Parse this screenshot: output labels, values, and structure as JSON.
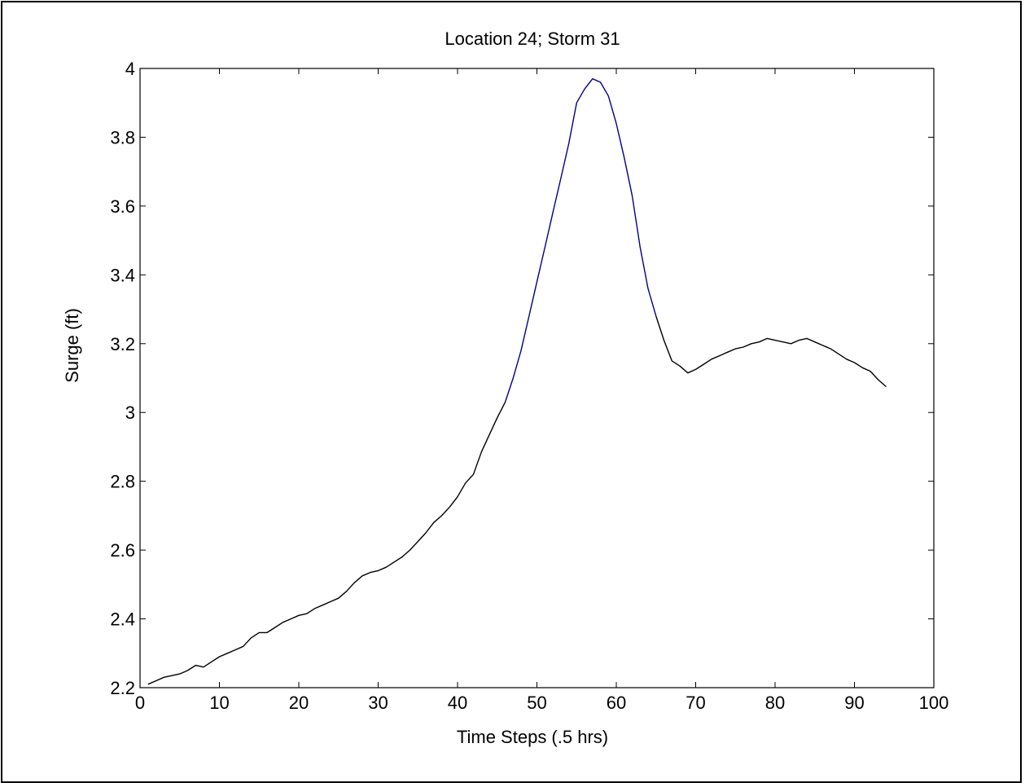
{
  "chart_data": {
    "type": "line",
    "title": "Location 24; Storm 31",
    "xlabel": "Time Steps (.5 hrs)",
    "ylabel": "Surge (ft)",
    "xlim": [
      0,
      100
    ],
    "ylim": [
      2.2,
      4.0
    ],
    "xticks": [
      0,
      10,
      20,
      30,
      40,
      50,
      60,
      70,
      80,
      90,
      100
    ],
    "xtick_labels": [
      "0",
      "10",
      "20",
      "30",
      "40",
      "50",
      "60",
      "70",
      "80",
      "90",
      "100"
    ],
    "yticks": [
      2.2,
      2.4,
      2.6,
      2.8,
      3.0,
      3.2,
      3.4,
      3.6,
      3.8,
      4.0
    ],
    "ytick_labels": [
      "2.2",
      "2.4",
      "2.6",
      "2.8",
      "3",
      "3.2",
      "3.4",
      "3.6",
      "3.8",
      "4"
    ],
    "grid": false,
    "series": [
      {
        "segments": [
          {
            "color": "#000000",
            "x": [
              1,
              2,
              3,
              4,
              5,
              6,
              7,
              8,
              9,
              10,
              11,
              12,
              13,
              14,
              15,
              16,
              17,
              18,
              19,
              20,
              21,
              22,
              23,
              24,
              25,
              26,
              27,
              28,
              29,
              30,
              31,
              32,
              33,
              34,
              35,
              36,
              37,
              38,
              39,
              40,
              41,
              42,
              43,
              44,
              45,
              46
            ],
            "y": [
              2.21,
              2.22,
              2.23,
              2.235,
              2.24,
              2.25,
              2.265,
              2.26,
              2.275,
              2.29,
              2.3,
              2.31,
              2.32,
              2.345,
              2.36,
              2.36,
              2.375,
              2.39,
              2.4,
              2.41,
              2.415,
              2.43,
              2.44,
              2.45,
              2.46,
              2.48,
              2.505,
              2.525,
              2.535,
              2.54,
              2.55,
              2.565,
              2.58,
              2.6,
              2.625,
              2.65,
              2.68,
              2.7,
              2.725,
              2.755,
              2.795,
              2.82,
              2.885,
              2.935,
              2.985,
              3.03
            ]
          },
          {
            "color": "#00008b",
            "x": [
              46,
              47,
              48,
              49,
              50,
              51,
              52,
              53,
              54,
              55,
              56,
              57,
              58,
              59,
              60,
              61,
              62,
              63,
              64,
              65
            ],
            "y": [
              3.03,
              3.1,
              3.18,
              3.28,
              3.38,
              3.48,
              3.58,
              3.68,
              3.78,
              3.9,
              3.94,
              3.97,
              3.96,
              3.92,
              3.84,
              3.74,
              3.63,
              3.48,
              3.36,
              3.28
            ]
          },
          {
            "color": "#000000",
            "x": [
              65,
              66,
              67,
              68,
              69,
              70,
              71,
              72,
              73,
              74,
              75,
              76,
              77,
              78,
              79,
              80,
              81,
              82,
              83,
              84,
              85,
              86,
              87,
              88,
              89,
              90,
              91,
              92,
              93,
              94
            ],
            "y": [
              3.28,
              3.21,
              3.15,
              3.135,
              3.115,
              3.125,
              3.14,
              3.155,
              3.165,
              3.175,
              3.185,
              3.19,
              3.2,
              3.205,
              3.215,
              3.21,
              3.205,
              3.2,
              3.21,
              3.215,
              3.205,
              3.195,
              3.185,
              3.17,
              3.155,
              3.145,
              3.13,
              3.12,
              3.095,
              3.075
            ]
          }
        ]
      }
    ]
  }
}
